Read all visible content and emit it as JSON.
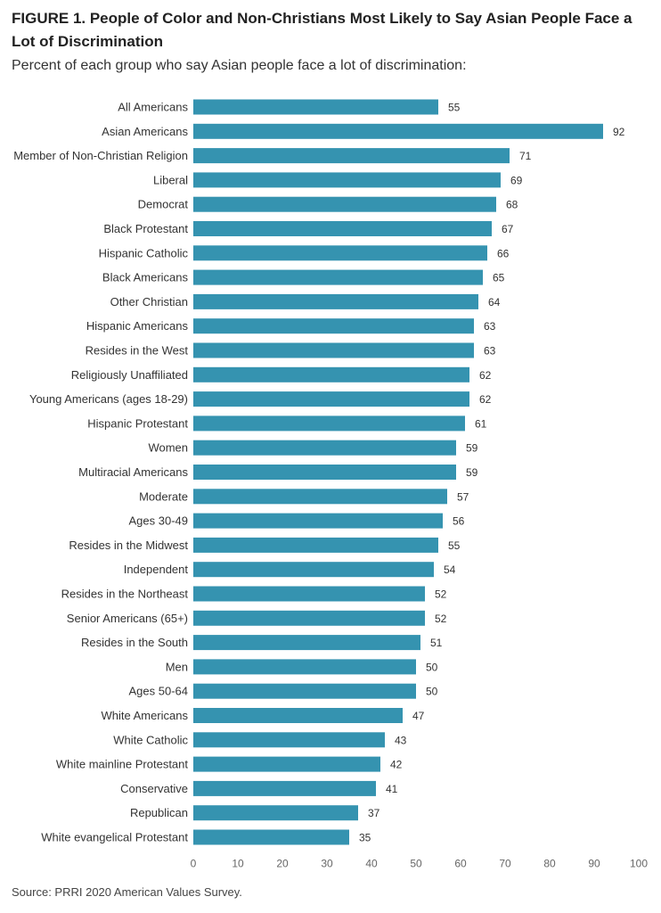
{
  "header": {
    "title": "FIGURE 1. People of Color and Non-Christians Most Likely to Say Asian People Face a Lot of Discrimination",
    "subtitle": "Percent of each group who say Asian people face a lot of discrimination:"
  },
  "footer": {
    "source": "Source: PRRI 2020 American Values Survey."
  },
  "chart_data": {
    "type": "bar",
    "orientation": "horizontal",
    "title": "FIGURE 1. People of Color and Non-Christians Most Likely to Say Asian People Face a Lot of Discrimination",
    "subtitle": "Percent of each group who say Asian people face a lot of discrimination:",
    "categories": [
      "All Americans",
      "Asian Americans",
      "Member of Non-Christian Religion",
      "Liberal",
      "Democrat",
      "Black Protestant",
      "Hispanic Catholic",
      "Black Americans",
      "Other Christian",
      "Hispanic Americans",
      "Resides in the West",
      "Religiously Unaffiliated",
      "Young Americans (ages 18-29)",
      "Hispanic Protestant",
      "Women",
      "Multiracial Americans",
      "Moderate",
      "Ages 30-49",
      "Resides in the Midwest",
      "Independent",
      "Resides in the Northeast",
      "Senior Americans (65+)",
      "Resides in the South",
      "Men",
      "Ages 50-64",
      "White Americans",
      "White Catholic",
      "White mainline Protestant",
      "Conservative",
      "Republican",
      "White evangelical Protestant"
    ],
    "values": [
      55,
      92,
      71,
      69,
      68,
      67,
      66,
      65,
      64,
      63,
      63,
      62,
      62,
      61,
      59,
      59,
      57,
      56,
      55,
      54,
      52,
      52,
      51,
      50,
      50,
      47,
      43,
      42,
      41,
      37,
      35
    ],
    "xlim": [
      0,
      100
    ],
    "xticks": [
      0,
      10,
      20,
      30,
      40,
      50,
      60,
      70,
      80,
      90,
      100
    ],
    "grid": false,
    "legend": "none",
    "colors": {
      "bar": "#3593b0",
      "text": "#333333",
      "tick": "#666666",
      "axis": "#cccccc"
    }
  }
}
